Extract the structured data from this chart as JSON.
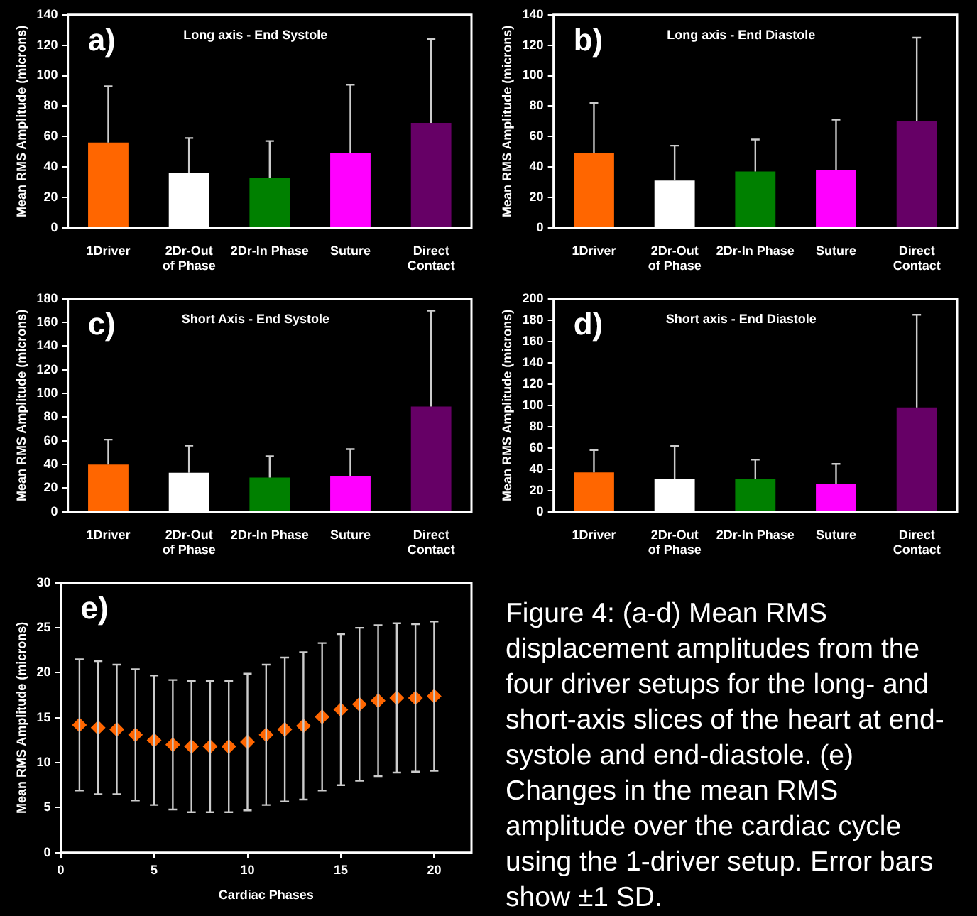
{
  "chart_data": [
    {
      "type": "bar",
      "title": "a)",
      "subtitle": "Long axis - End Systole",
      "ylabel": "Mean RMS Amplitude (microns)",
      "categories": [
        "1Driver",
        "2Dr-Out of Phase",
        "2Dr-In Phase",
        "Suture",
        "Direct Contact"
      ],
      "values": [
        56,
        36,
        33,
        49,
        69
      ],
      "colors": [
        "#ff6600",
        "#ffffff",
        "#008000",
        "#ff00ff",
        "#660066"
      ],
      "errors": [
        [
          56,
          93
        ],
        [
          36,
          59
        ],
        [
          33,
          57
        ],
        [
          49,
          94
        ],
        [
          69,
          124
        ]
      ],
      "ylim": [
        0,
        140
      ],
      "yticks": [
        0,
        20,
        40,
        60,
        80,
        100,
        120,
        140
      ],
      "grid": false,
      "legend": false
    },
    {
      "type": "bar",
      "title": "b)",
      "subtitle": "Long axis - End Diastole",
      "ylabel": "Mean RMS Amplitude (microns)",
      "categories": [
        "1Driver",
        "2Dr-Out of Phase",
        "2Dr-In Phase",
        "Suture",
        "Direct Contact"
      ],
      "values": [
        49,
        31,
        37,
        38,
        70
      ],
      "colors": [
        "#ff6600",
        "#ffffff",
        "#008000",
        "#ff00ff",
        "#660066"
      ],
      "errors": [
        [
          49,
          82
        ],
        [
          31,
          54
        ],
        [
          37,
          58
        ],
        [
          38,
          71
        ],
        [
          70,
          125
        ]
      ],
      "ylim": [
        0,
        140
      ],
      "yticks": [
        0,
        20,
        40,
        60,
        80,
        100,
        120,
        140
      ],
      "grid": false,
      "legend": false
    },
    {
      "type": "bar",
      "title": "c)",
      "subtitle": "Short Axis - End Systole",
      "ylabel": "Mean RMS Amplitude (microns)",
      "categories": [
        "1Driver",
        "2Dr-Out of Phase",
        "2Dr-In Phase",
        "Suture",
        "Direct Contact"
      ],
      "values": [
        40,
        33,
        29,
        30,
        89
      ],
      "colors": [
        "#ff6600",
        "#ffffff",
        "#008000",
        "#ff00ff",
        "#660066"
      ],
      "errors": [
        [
          40,
          61
        ],
        [
          33,
          56
        ],
        [
          29,
          47
        ],
        [
          30,
          53
        ],
        [
          89,
          170
        ]
      ],
      "ylim": [
        0,
        180
      ],
      "yticks": [
        0,
        20,
        40,
        60,
        80,
        100,
        120,
        140,
        160,
        180
      ],
      "grid": false,
      "legend": false
    },
    {
      "type": "bar",
      "title": "d)",
      "subtitle": "Short axis - End Diastole",
      "ylabel": "Mean RMS Amplitude (microns)",
      "categories": [
        "1Driver",
        "2Dr-Out of Phase",
        "2Dr-In Phase",
        "Suture",
        "Direct Contact"
      ],
      "values": [
        37,
        31,
        31,
        26,
        98
      ],
      "colors": [
        "#ff6600",
        "#ffffff",
        "#008000",
        "#ff00ff",
        "#660066"
      ],
      "errors": [
        [
          37,
          58
        ],
        [
          31,
          62
        ],
        [
          31,
          49
        ],
        [
          26,
          45
        ],
        [
          98,
          185
        ]
      ],
      "ylim": [
        0,
        200
      ],
      "yticks": [
        0,
        20,
        40,
        60,
        80,
        100,
        120,
        140,
        160,
        180,
        200
      ],
      "grid": false,
      "legend": false
    },
    {
      "type": "scatter",
      "title": "e)",
      "xlabel": "Cardiac Phases",
      "ylabel": "Mean RMS Amplitude (microns)",
      "x": [
        1,
        2,
        3,
        4,
        5,
        6,
        7,
        8,
        9,
        10,
        11,
        12,
        13,
        14,
        15,
        16,
        17,
        18,
        19,
        20
      ],
      "values": [
        14.2,
        13.9,
        13.7,
        13.1,
        12.5,
        12.0,
        11.8,
        11.8,
        11.8,
        12.3,
        13.1,
        13.7,
        14.1,
        15.1,
        15.9,
        16.5,
        16.9,
        17.2,
        17.2,
        17.4
      ],
      "errors": [
        7.3,
        7.4,
        7.2,
        7.3,
        7.2,
        7.2,
        7.3,
        7.3,
        7.3,
        7.6,
        7.8,
        8.0,
        8.2,
        8.2,
        8.4,
        8.5,
        8.4,
        8.3,
        8.2,
        8.3
      ],
      "color": "#ff6600",
      "marker": "diamond",
      "xlim": [
        0,
        22
      ],
      "xticks": [
        0,
        5,
        10,
        15,
        20
      ],
      "ylim": [
        0,
        30
      ],
      "yticks": [
        0,
        5,
        10,
        15,
        20,
        25,
        30
      ],
      "grid": false,
      "legend": false
    },
    {
      "type": "other",
      "annotations": [
        "Figure 4: (a-d) Mean RMS displacement amplitudes from the four driver setups for the long- and short-axis slices of the heart at end-systole and end-diastole. (e) Changes in the mean RMS amplitude over the cardiac cycle using the 1-driver setup. Error bars show ±1 SD."
      ]
    }
  ]
}
